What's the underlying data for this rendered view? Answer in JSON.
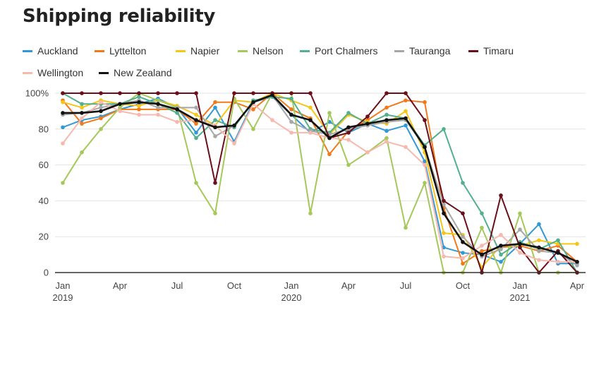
{
  "title": "Shipping reliability",
  "chart_data": {
    "type": "line",
    "title": "Shipping reliability",
    "xlabel": "",
    "ylabel": "",
    "ylim": [
      0,
      100
    ],
    "grid": true,
    "legend_position": "top",
    "x": [
      "2019-01",
      "2019-02",
      "2019-03",
      "2019-04",
      "2019-05",
      "2019-06",
      "2019-07",
      "2019-08",
      "2019-09",
      "2019-10",
      "2019-11",
      "2019-12",
      "2020-01",
      "2020-02",
      "2020-03",
      "2020-04",
      "2020-05",
      "2020-06",
      "2020-07",
      "2020-08",
      "2020-09",
      "2020-10",
      "2020-11",
      "2020-12",
      "2021-01",
      "2021-02",
      "2021-03",
      "2021-04"
    ],
    "x_ticks": [
      {
        "x": "2019-01",
        "label": "Jan",
        "sublabel": "2019"
      },
      {
        "x": "2019-04",
        "label": "Apr",
        "sublabel": ""
      },
      {
        "x": "2019-07",
        "label": "Jul",
        "sublabel": ""
      },
      {
        "x": "2019-10",
        "label": "Oct",
        "sublabel": ""
      },
      {
        "x": "2020-01",
        "label": "Jan",
        "sublabel": "2020"
      },
      {
        "x": "2020-04",
        "label": "Apr",
        "sublabel": ""
      },
      {
        "x": "2020-07",
        "label": "Jul",
        "sublabel": ""
      },
      {
        "x": "2020-10",
        "label": "Oct",
        "sublabel": ""
      },
      {
        "x": "2021-01",
        "label": "Jan",
        "sublabel": "2021"
      },
      {
        "x": "2021-04",
        "label": "Apr",
        "sublabel": ""
      }
    ],
    "y_ticks": [
      {
        "value": 0,
        "label": "0"
      },
      {
        "value": 20,
        "label": "20"
      },
      {
        "value": 40,
        "label": "40"
      },
      {
        "value": 60,
        "label": "60"
      },
      {
        "value": 80,
        "label": "80"
      },
      {
        "value": 100,
        "label": "100%"
      }
    ],
    "series": [
      {
        "name": "Auckland",
        "color": "#3399d6",
        "values": [
          81,
          85,
          87,
          91,
          94,
          97,
          92,
          78,
          92,
          73,
          95,
          98,
          88,
          78,
          84,
          78,
          83,
          79,
          82,
          62,
          14,
          11,
          10,
          6,
          16,
          27,
          5,
          5
        ]
      },
      {
        "name": "Lyttelton",
        "color": "#f07a1a",
        "values": [
          96,
          83,
          86,
          91,
          91,
          91,
          91,
          83,
          95,
          95,
          91,
          100,
          91,
          86,
          66,
          79,
          85,
          92,
          96,
          95,
          36,
          5,
          12,
          14,
          15,
          12,
          15,
          6
        ]
      },
      {
        "name": "Napier",
        "color": "#f5c518",
        "values": [
          95,
          92,
          96,
          94,
          93,
          96,
          93,
          88,
          82,
          96,
          95,
          100,
          96,
          92,
          77,
          88,
          84,
          83,
          90,
          67,
          22,
          21,
          3,
          15,
          15,
          18,
          16,
          16
        ]
      },
      {
        "name": "Nelson",
        "color": "#a5c85a",
        "values": [
          50,
          67,
          80,
          92,
          100,
          96,
          92,
          50,
          33,
          97,
          80,
          100,
          100,
          33,
          89,
          60,
          67,
          75,
          25,
          50,
          0,
          0,
          25,
          0,
          33,
          0,
          0,
          0
        ]
      },
      {
        "name": "Port Chalmers",
        "color": "#52b08c",
        "values": [
          100,
          94,
          94,
          94,
          98,
          94,
          89,
          75,
          85,
          81,
          96,
          98,
          97,
          80,
          78,
          89,
          83,
          88,
          86,
          71,
          80,
          50,
          33,
          10,
          17,
          13,
          18,
          0
        ]
      },
      {
        "name": "Tauranga",
        "color": "#a7a7a7",
        "values": [
          88,
          89,
          92,
          94,
          96,
          92,
          92,
          92,
          76,
          82,
          95,
          99,
          84,
          79,
          77,
          80,
          82,
          84,
          85,
          70,
          38,
          20,
          9,
          13,
          24,
          12,
          11,
          4
        ]
      },
      {
        "name": "Timaru",
        "color": "#6b0f1a",
        "values": [
          100,
          100,
          100,
          100,
          100,
          100,
          100,
          100,
          50,
          100,
          100,
          100,
          100,
          100,
          75,
          78,
          87,
          100,
          100,
          85,
          40,
          33,
          0,
          43,
          14,
          0,
          12,
          0
        ]
      },
      {
        "name": "Wellington",
        "color": "#f7b8ad",
        "values": [
          72,
          86,
          95,
          90,
          88,
          88,
          84,
          85,
          82,
          72,
          94,
          85,
          78,
          78,
          75,
          74,
          67,
          73,
          70,
          60,
          9,
          8,
          15,
          21,
          11,
          7,
          6,
          6
        ]
      },
      {
        "name": "New Zealand",
        "color": "#111111",
        "values": [
          89,
          89,
          90,
          94,
          95,
          94,
          91,
          85,
          81,
          82,
          95,
          99,
          88,
          85,
          75,
          81,
          83,
          85,
          86,
          70,
          33,
          17,
          10,
          15,
          16,
          14,
          11,
          6
        ]
      }
    ]
  }
}
